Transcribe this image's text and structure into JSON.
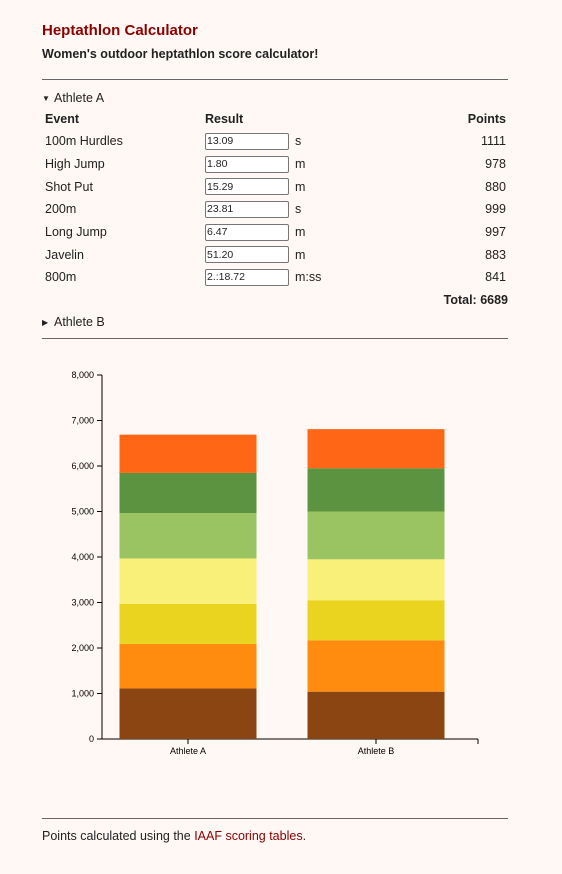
{
  "header": {
    "title": "Heptathlon Calculator",
    "subtitle": "Women's outdoor heptathlon score calculator!"
  },
  "athlete_a": {
    "label": "Athlete A",
    "expanded": true,
    "columns": {
      "event": "Event",
      "result": "Result",
      "points": "Points"
    },
    "events": [
      {
        "name": "100m Hurdles",
        "result": "13.09",
        "unit": "s",
        "points": "1111"
      },
      {
        "name": "High Jump",
        "result": "1.80",
        "unit": "m",
        "points": "978"
      },
      {
        "name": "Shot Put",
        "result": "15.29",
        "unit": "m",
        "points": "880"
      },
      {
        "name": "200m",
        "result": "23.81",
        "unit": "s",
        "points": "999"
      },
      {
        "name": "Long Jump",
        "result": "6.47",
        "unit": "m",
        "points": "997"
      },
      {
        "name": "Javelin",
        "result": "51.20",
        "unit": "m",
        "points": "883"
      },
      {
        "name": "800m",
        "result": "2.:18.72",
        "unit": "m:ss",
        "points": "841"
      }
    ],
    "total": "Total: 6689"
  },
  "athlete_b": {
    "label": "Athlete B",
    "expanded": false
  },
  "chart_data": {
    "type": "bar",
    "stacked": true,
    "categories": [
      "Athlete A",
      "Athlete B"
    ],
    "series": [
      {
        "values": [
          1111,
          1040
        ],
        "color": "#8b4513"
      },
      {
        "values": [
          978,
          1130
        ],
        "color": "#ff8c0f"
      },
      {
        "values": [
          880,
          880
        ],
        "color": "#ebd41f"
      },
      {
        "values": [
          999,
          900
        ],
        "color": "#f8f078"
      },
      {
        "values": [
          997,
          1050
        ],
        "color": "#9ac461"
      },
      {
        "values": [
          883,
          950
        ],
        "color": "#5c9340"
      },
      {
        "values": [
          841,
          860
        ],
        "color": "#ff6615"
      }
    ],
    "ylim": [
      0,
      8000
    ],
    "yticks": [
      "0",
      "1,000",
      "2,000",
      "3,000",
      "4,000",
      "5,000",
      "6,000",
      "7,000",
      "8,000"
    ],
    "grid": false
  },
  "footer": {
    "prefix": "Points calculated using the ",
    "link": "IAAF scoring tables",
    "suffix": "."
  }
}
